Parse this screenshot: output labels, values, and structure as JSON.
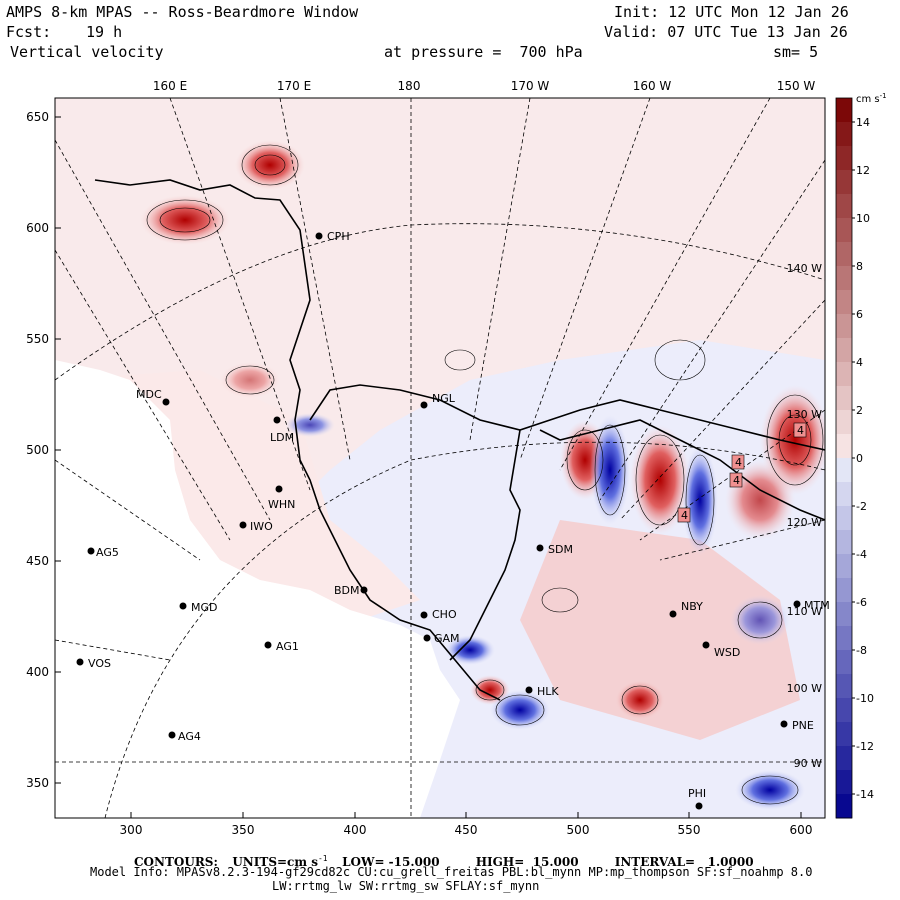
{
  "header": {
    "title": "AMPS 8-km MPAS -- Ross-Beardmore Window",
    "forecast_label": "Fcst:",
    "forecast_value": "19 h",
    "field": "Vertical velocity",
    "init": "Init: 12 UTC Mon 12 Jan 26",
    "valid": "Valid: 07 UTC Tue 13 Jan 26",
    "pressure": "at pressure =  700 hPa",
    "smooth": "sm= 5"
  },
  "map": {
    "lon_labels": [
      "160 E",
      "170 E",
      "180",
      "170 W",
      "160 W",
      "150 W"
    ],
    "grid_lon_labels": [
      "140 W",
      "130 W",
      "120 W",
      "110 W",
      "100 W",
      "90 W"
    ],
    "x_ticks": [
      "300",
      "350",
      "400",
      "450",
      "500",
      "550",
      "600"
    ],
    "y_ticks": [
      "650",
      "600",
      "550",
      "500",
      "450",
      "400",
      "350"
    ],
    "stations": [
      {
        "name": "CPH"
      },
      {
        "name": "NGL"
      },
      {
        "name": "MDC"
      },
      {
        "name": "LDM"
      },
      {
        "name": "WHN"
      },
      {
        "name": "IWO"
      },
      {
        "name": "AG5"
      },
      {
        "name": "SDM"
      },
      {
        "name": "BDM"
      },
      {
        "name": "MGD"
      },
      {
        "name": "AG1"
      },
      {
        "name": "VOS"
      },
      {
        "name": "AG4"
      },
      {
        "name": "CHO"
      },
      {
        "name": "GAM"
      },
      {
        "name": "HLK"
      },
      {
        "name": "NBY"
      },
      {
        "name": "MTM"
      },
      {
        "name": "WSD"
      },
      {
        "name": "PNE"
      },
      {
        "name": "PHI"
      }
    ],
    "contour_value_labels": [
      "4",
      "4",
      "4",
      "4"
    ]
  },
  "colorbar": {
    "unit": "cm s",
    "unit_exp": "-1",
    "labels": [
      "14",
      "12",
      "10",
      "8",
      "6",
      "4",
      "2",
      "0",
      "-2",
      "-4",
      "-6",
      "-8",
      "-10",
      "-12",
      "-14"
    ]
  },
  "footer": {
    "contours_label": "CONTOURS:",
    "units": "UNITS=cm s",
    "units_exp": "-1",
    "low": "LOW= -15.000",
    "high": "HIGH=  15.000",
    "interval": "INTERVAL=   1.0000",
    "model_info": "Model Info: MPASv8.2.3-194-gf29cd82c CU:cu_grell_freitas PBL:bl_mynn MP:mp_thompson SF:sf_noahmp 8.0",
    "model_info2": "LW:rrtmg_lw SW:rrtmg_sw SFLAY:sf_mynn"
  },
  "colors": {
    "pos_strong": "#b00000",
    "pos_mid": "#e06060",
    "pos_weak": "#f8d8d8",
    "neg_weak": "#d8dcf8",
    "neg_mid": "#6070e0",
    "neg_strong": "#0000a0"
  }
}
